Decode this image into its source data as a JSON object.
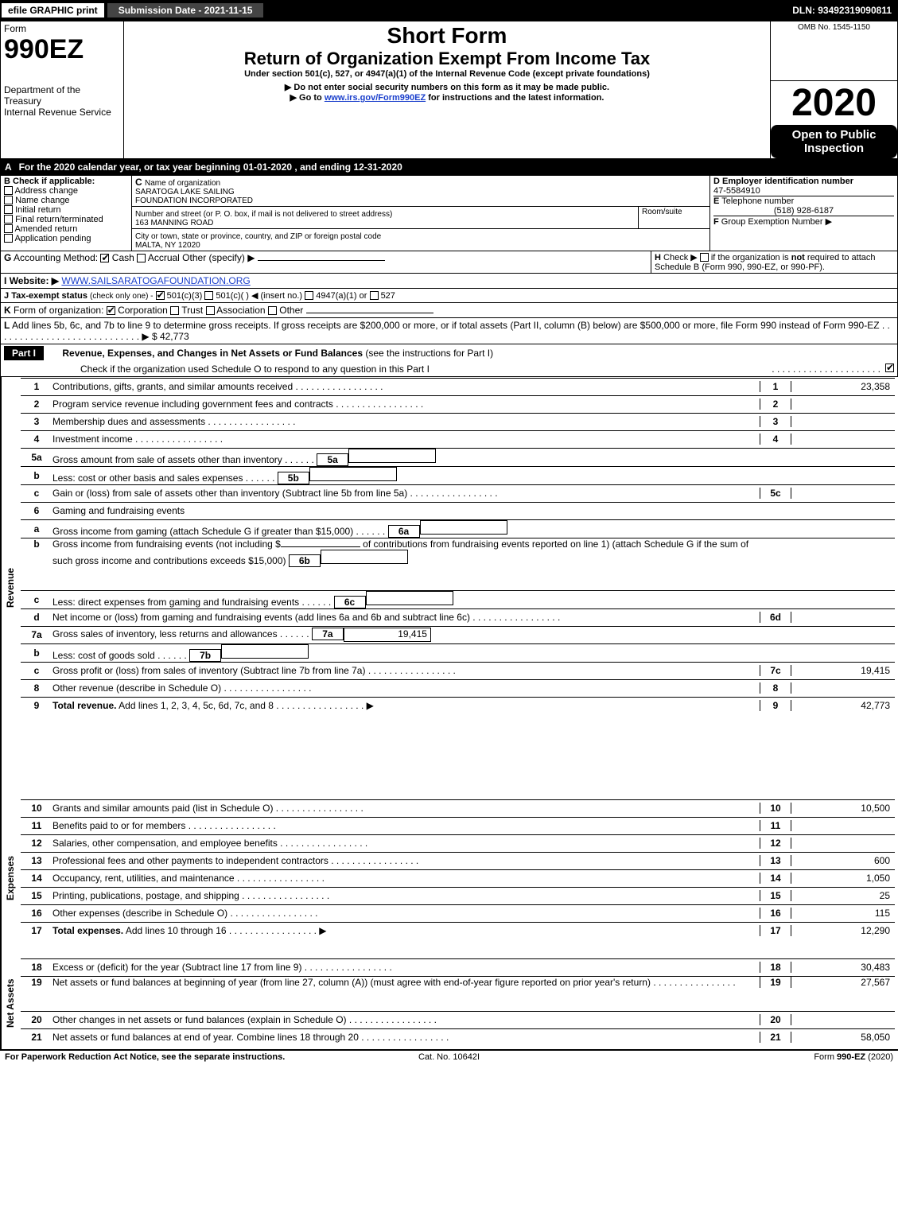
{
  "topbar": {
    "efile": "efile GRAPHIC print",
    "submission": "Submission Date - 2021-11-15",
    "dln": "DLN: 93492319090811"
  },
  "header": {
    "form_word": "Form",
    "form_num": "990EZ",
    "dept": "Department of the Treasury",
    "irs": "Internal Revenue Service",
    "short": "Short Form",
    "return": "Return of Organization Exempt From Income Tax",
    "under": "Under section 501(c), 527, or 4947(a)(1) of the Internal Revenue Code (except private foundations)",
    "warn": "Do not enter social security numbers on this form as it may be made public.",
    "goto_pre": "Go to ",
    "goto_link": "www.irs.gov/Form990EZ",
    "goto_post": " for instructions and the latest information.",
    "omb": "OMB No. 1545-1150",
    "year": "2020",
    "open": "Open to Public Inspection"
  },
  "A": {
    "text": "For the 2020 calendar year, or tax year beginning 01-01-2020 , and ending 12-31-2020"
  },
  "B": {
    "label": "Check if applicable:",
    "items": [
      "Address change",
      "Name change",
      "Initial return",
      "Final return/terminated",
      "Amended return",
      "Application pending"
    ]
  },
  "C": {
    "name_lbl": "Name of organization",
    "name1": "SARATOGA LAKE SAILING",
    "name2": "FOUNDATION INCORPORATED",
    "addr_lbl": "Number and street (or P. O. box, if mail is not delivered to street address)",
    "room_lbl": "Room/suite",
    "addr": "163 MANNING ROAD",
    "city_lbl": "City or town, state or province, country, and ZIP or foreign postal code",
    "city": "MALTA, NY  12020"
  },
  "D": {
    "lbl": "Employer identification number",
    "val": "47-5584910"
  },
  "E": {
    "lbl": "Telephone number",
    "val": "(518) 928-6187"
  },
  "F": {
    "lbl": "Group Exemption Number",
    "arrow": "▶"
  },
  "G": {
    "lbl": "Accounting Method:",
    "cash": "Cash",
    "accrual": "Accrual",
    "other": "Other (specify) ▶"
  },
  "H": {
    "lbl": "Check ▶",
    "txt1": "if the organization is ",
    "not": "not",
    "txt2": " required to attach Schedule B (Form 990, 990-EZ, or 990-PF)."
  },
  "I": {
    "lbl": "Website: ▶",
    "val": "WWW.SAILSARATOGAFOUNDATION.ORG"
  },
  "J": {
    "lbl": "Tax-exempt status",
    "note": "(check only one) -",
    "opt1": "501(c)(3)",
    "opt2": "501(c)(   ) ◀ (insert no.)",
    "opt3": "4947(a)(1) or",
    "opt4": "527"
  },
  "K": {
    "lbl": "Form of organization:",
    "opts": [
      "Corporation",
      "Trust",
      "Association",
      "Other"
    ]
  },
  "L": {
    "txt": "Add lines 5b, 6c, and 7b to line 9 to determine gross receipts. If gross receipts are $200,000 or more, or if total assets (Part II, column (B) below) are $500,000 or more, file Form 990 instead of Form 990-EZ",
    "amt": "$ 42,773"
  },
  "partI": {
    "title": "Part I",
    "hdr": "Revenue, Expenses, and Changes in Net Assets or Fund Balances",
    "note": "(see the instructions for Part I)",
    "check": "Check if the organization used Schedule O to respond to any question in this Part I"
  },
  "side": {
    "rev": "Revenue",
    "exp": "Expenses",
    "na": "Net Assets"
  },
  "lines": {
    "1": {
      "d": "Contributions, gifts, grants, and similar amounts received",
      "v": "23,358"
    },
    "2": {
      "d": "Program service revenue including government fees and contracts",
      "v": ""
    },
    "3": {
      "d": "Membership dues and assessments",
      "v": ""
    },
    "4": {
      "d": "Investment income",
      "v": ""
    },
    "5a": {
      "d": "Gross amount from sale of assets other than inventory",
      "sv": ""
    },
    "5b": {
      "d": "Less: cost or other basis and sales expenses",
      "sv": ""
    },
    "5c": {
      "d": "Gain or (loss) from sale of assets other than inventory (Subtract line 5b from line 5a)",
      "v": ""
    },
    "6": {
      "d": "Gaming and fundraising events"
    },
    "6a": {
      "d": "Gross income from gaming (attach Schedule G if greater than $15,000)",
      "sv": ""
    },
    "6b": {
      "d1": "Gross income from fundraising events (not including $",
      "d2": " of contributions from fundraising events reported on line 1) (attach Schedule G if the sum of such gross income and contributions exceeds $15,000)",
      "sv": ""
    },
    "6c": {
      "d": "Less: direct expenses from gaming and fundraising events",
      "sv": ""
    },
    "6d": {
      "d": "Net income or (loss) from gaming and fundraising events (add lines 6a and 6b and subtract line 6c)",
      "v": ""
    },
    "7a": {
      "d": "Gross sales of inventory, less returns and allowances",
      "sv": "19,415"
    },
    "7b": {
      "d": "Less: cost of goods sold",
      "sv": ""
    },
    "7c": {
      "d": "Gross profit or (loss) from sales of inventory (Subtract line 7b from line 7a)",
      "v": "19,415"
    },
    "8": {
      "d": "Other revenue (describe in Schedule O)",
      "v": ""
    },
    "9": {
      "d": "Total revenue. Add lines 1, 2, 3, 4, 5c, 6d, 7c, and 8",
      "v": "42,773"
    },
    "10": {
      "d": "Grants and similar amounts paid (list in Schedule O)",
      "v": "10,500"
    },
    "11": {
      "d": "Benefits paid to or for members",
      "v": ""
    },
    "12": {
      "d": "Salaries, other compensation, and employee benefits",
      "v": ""
    },
    "13": {
      "d": "Professional fees and other payments to independent contractors",
      "v": "600"
    },
    "14": {
      "d": "Occupancy, rent, utilities, and maintenance",
      "v": "1,050"
    },
    "15": {
      "d": "Printing, publications, postage, and shipping",
      "v": "25"
    },
    "16": {
      "d": "Other expenses (describe in Schedule O)",
      "v": "115"
    },
    "17": {
      "d": "Total expenses. Add lines 10 through 16",
      "v": "12,290"
    },
    "18": {
      "d": "Excess or (deficit) for the year (Subtract line 17 from line 9)",
      "v": "30,483"
    },
    "19": {
      "d": "Net assets or fund balances at beginning of year (from line 27, column (A)) (must agree with end-of-year figure reported on prior year's return)",
      "v": "27,567"
    },
    "20": {
      "d": "Other changes in net assets or fund balances (explain in Schedule O)",
      "v": ""
    },
    "21": {
      "d": "Net assets or fund balances at end of year. Combine lines 18 through 20",
      "v": "58,050"
    }
  },
  "footer": {
    "f1": "For Paperwork Reduction Act Notice, see the separate instructions.",
    "f2": "Cat. No. 10642I",
    "f3a": "Form ",
    "f3b": "990-EZ",
    "f3c": " (2020)"
  },
  "labels": {
    "B": "B",
    "C": "C",
    "D": "D",
    "E": "E",
    "F": "F",
    "G": "G",
    "H": "H",
    "I": "I",
    "J": "J",
    "K": "K",
    "L": "L",
    "A": "A"
  }
}
